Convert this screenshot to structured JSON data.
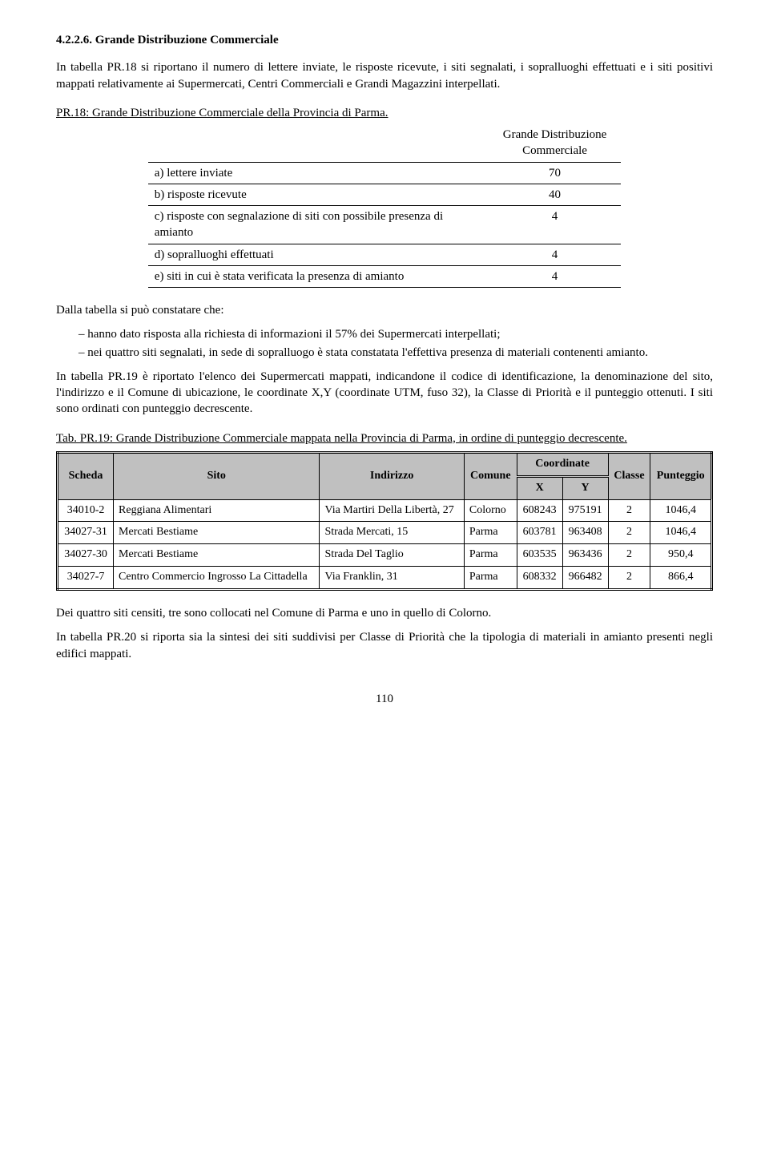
{
  "section_title": "4.2.2.6. Grande Distribuzione Commerciale",
  "intro": "In tabella PR.18 si riportano il numero di lettere inviate, le risposte ricevute, i siti segnalati, i sopralluoghi effettuati e i siti positivi mappati relativamente ai Supermercati, Centri Commerciali e Grandi Magazzini interpellati.",
  "stats_caption": "PR.18: Grande Distribuzione Commerciale della Provincia di Parma.",
  "stats_header": "Grande Distribuzione Commerciale",
  "stats_rows": [
    {
      "label": "a)  lettere inviate",
      "value": "70"
    },
    {
      "label": "b)  risposte ricevute",
      "value": "40"
    },
    {
      "label": "c)  risposte con segnalazione di siti con possibile presenza di amianto",
      "value": "4"
    },
    {
      "label": "d)  sopralluoghi effettuati",
      "value": "4"
    },
    {
      "label": "e)  siti in cui è stata verificata la presenza di amianto",
      "value": "4"
    }
  ],
  "findings_intro": "Dalla tabella si può constatare che:",
  "findings": [
    "hanno dato risposta alla richiesta di informazioni il 57% dei Supermercati interpellati;",
    "nei quattro siti segnalati, in sede di sopralluogo è stata constatata l'effettiva presenza di materiali contenenti amianto."
  ],
  "para2": "In tabella PR.19 è riportato l'elenco dei Supermercati mappati, indicandone il codice di identificazione, la denominazione del sito, l'indirizzo e il Comune di ubicazione, le coordinate X,Y (coordinate UTM, fuso 32), la Classe di Priorità e il punteggio ottenuti. I siti sono ordinati con punteggio decrescente.",
  "data_caption": "Tab. PR.19: Grande Distribuzione Commerciale mappata nella Provincia di Parma, in ordine di punteggio decrescente.",
  "data_columns": {
    "scheda": "Scheda",
    "sito": "Sito",
    "indirizzo": "Indirizzo",
    "comune": "Comune",
    "coord": "Coordinate",
    "x": "X",
    "y": "Y",
    "classe": "Classe",
    "punteggio": "Punteggio"
  },
  "data_rows": [
    {
      "scheda": "34010-2",
      "sito": "Reggiana Alimentari",
      "indirizzo": "Via Martiri Della Libertà, 27",
      "comune": "Colorno",
      "x": "608243",
      "y": "975191",
      "classe": "2",
      "punteggio": "1046,4"
    },
    {
      "scheda": "34027-31",
      "sito": "Mercati Bestiame",
      "indirizzo": "Strada Mercati, 15",
      "comune": "Parma",
      "x": "603781",
      "y": "963408",
      "classe": "2",
      "punteggio": "1046,4"
    },
    {
      "scheda": "34027-30",
      "sito": "Mercati Bestiame",
      "indirizzo": "Strada Del Taglio",
      "comune": "Parma",
      "x": "603535",
      "y": "963436",
      "classe": "2",
      "punteggio": "950,4"
    },
    {
      "scheda": "34027-7",
      "sito": "Centro Commercio Ingrosso La Cittadella",
      "indirizzo": "Via Franklin, 31",
      "comune": "Parma",
      "x": "608332",
      "y": "966482",
      "classe": "2",
      "punteggio": "866,4"
    }
  ],
  "para3": "Dei quattro siti censiti, tre sono collocati nel Comune di Parma e uno in quello di Colorno.",
  "para4": "In tabella PR.20 si riporta sia la sintesi dei siti suddivisi per Classe di Priorità che la tipologia di materiali in amianto presenti negli edifici mappati.",
  "page_number": "110"
}
